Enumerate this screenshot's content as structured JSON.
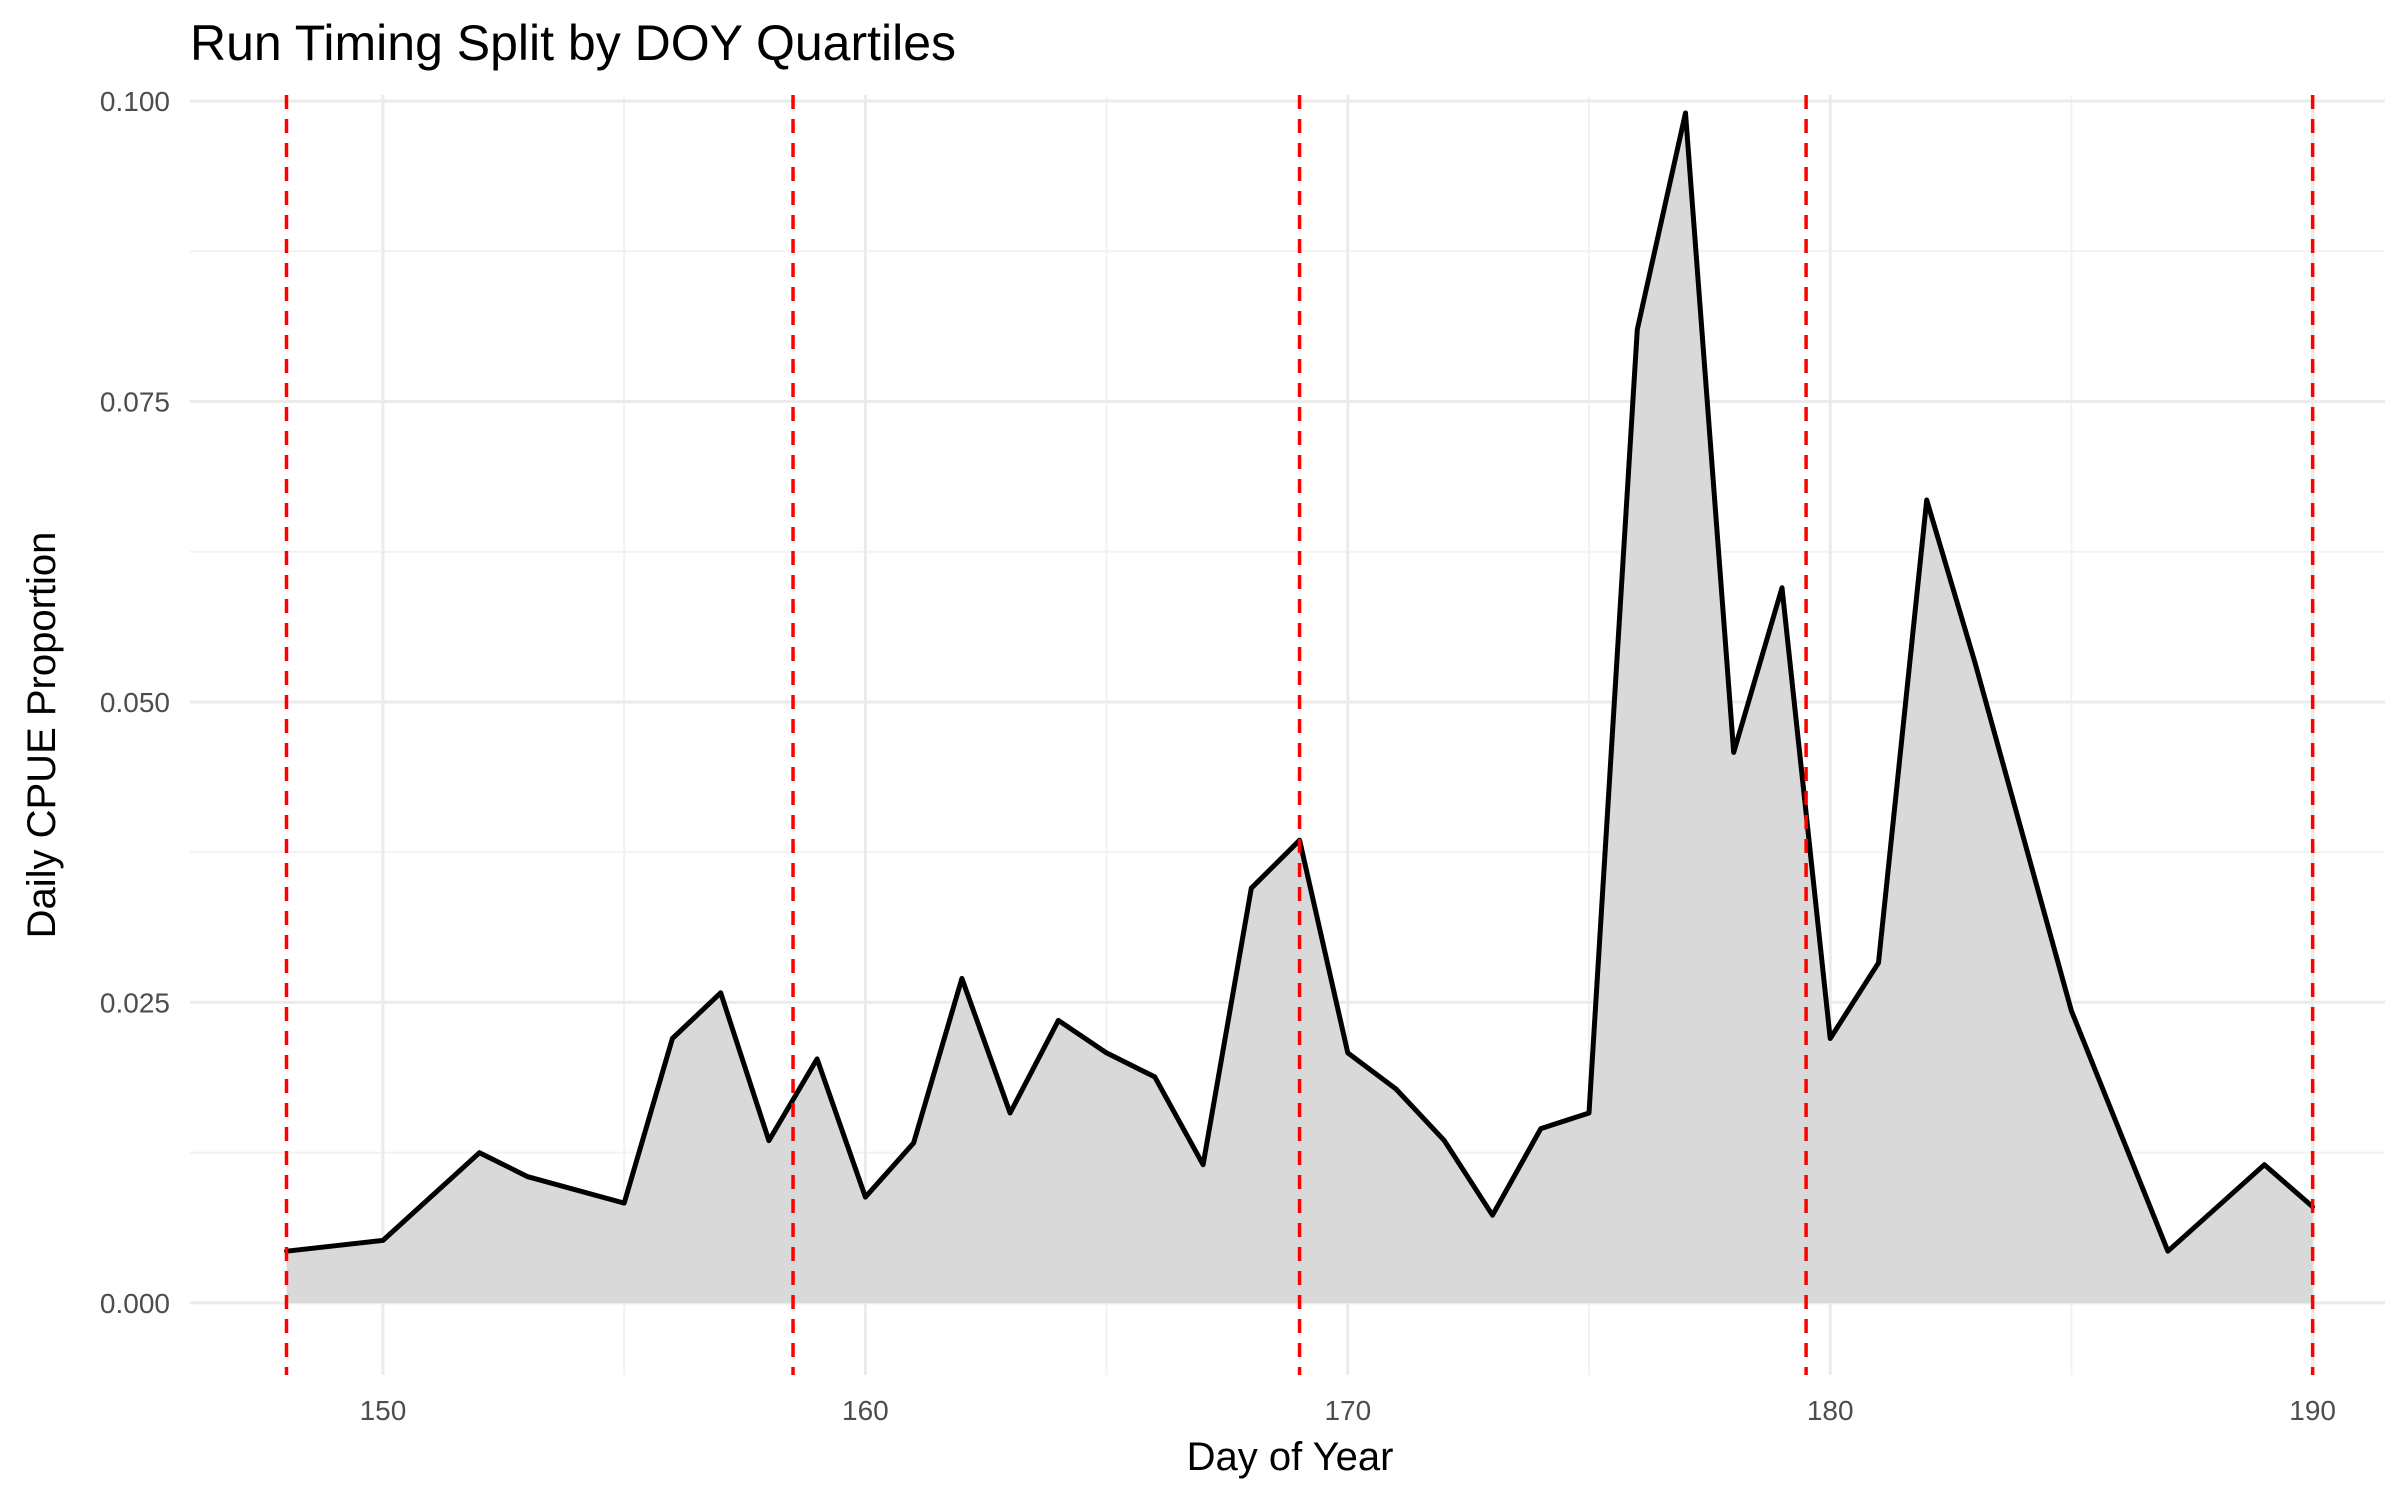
{
  "chart_data": {
    "type": "area",
    "title": "Run Timing Split by DOY Quartiles",
    "xlabel": "Day of Year",
    "ylabel": "Daily CPUE Proportion",
    "xlim": [
      146,
      191.5
    ],
    "ylim": [
      -0.006,
      0.1005
    ],
    "x_ticks": [
      150,
      160,
      170,
      180,
      190
    ],
    "y_ticks": [
      0.0,
      0.025,
      0.05,
      0.075,
      0.1
    ],
    "x_tick_labels": [
      "150",
      "160",
      "170",
      "180",
      "190"
    ],
    "y_tick_labels": [
      "0.000",
      "0.025",
      "0.050",
      "0.075",
      "0.100"
    ],
    "grid": true,
    "legend": "none",
    "colors": {
      "area_fill": "#d9d9d9",
      "line": "#000000",
      "quartile_lines": "#ff0000"
    },
    "quartile_lines_x": [
      148,
      158.5,
      169,
      179.5,
      190
    ],
    "series": [
      {
        "x": [
          148,
          150,
          152,
          153,
          155,
          156,
          157,
          158,
          159,
          160,
          161,
          162,
          163,
          164,
          165,
          166,
          167,
          168,
          169,
          170,
          171,
          172,
          173,
          174,
          175,
          176,
          177,
          178,
          179,
          180,
          181,
          182,
          183,
          185,
          187,
          189,
          190
        ],
        "y": [
          0.0043,
          0.0052,
          0.0125,
          0.0105,
          0.0083,
          0.022,
          0.0258,
          0.0135,
          0.0203,
          0.0088,
          0.0133,
          0.027,
          0.0158,
          0.0235,
          0.0208,
          0.0188,
          0.0115,
          0.0345,
          0.0385,
          0.0208,
          0.0178,
          0.0135,
          0.0073,
          0.0145,
          0.0158,
          0.081,
          0.099,
          0.0458,
          0.0595,
          0.022,
          0.0283,
          0.0668,
          0.0533,
          0.0243,
          0.0043,
          0.0115,
          0.008
        ]
      }
    ]
  }
}
